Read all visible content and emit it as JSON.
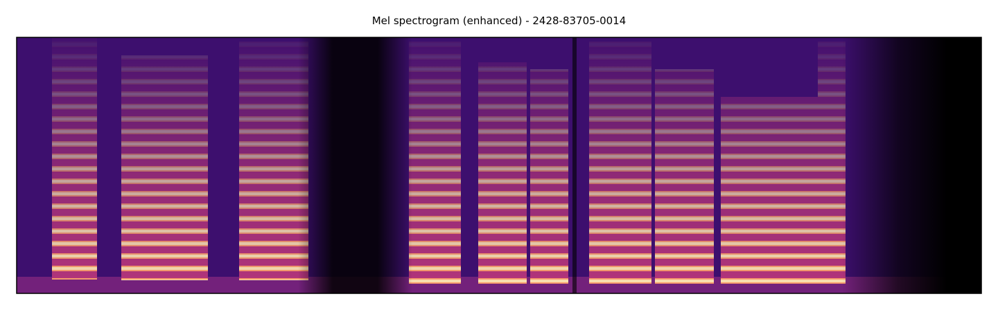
{
  "chart_data": {
    "type": "heatmap",
    "title": "Mel spectrogram (enhanced) - 2428-83705-0014"
  }
}
